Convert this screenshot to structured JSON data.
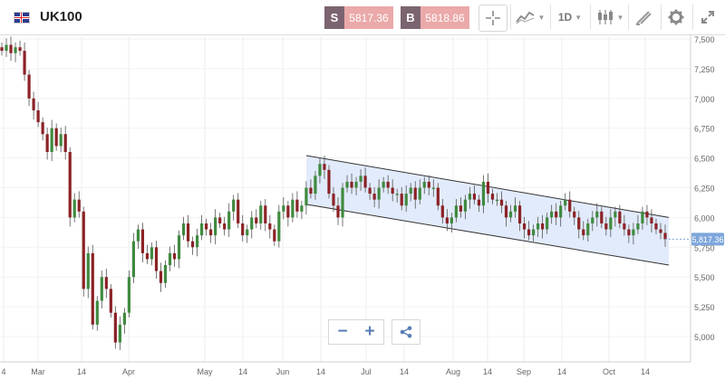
{
  "header": {
    "instrument": "UK100",
    "sell_label": "S",
    "sell_price": "5817.36",
    "buy_label": "B",
    "buy_price": "5818.86",
    "timeframe": "1D"
  },
  "controls": {
    "zoom_out": "−",
    "zoom_in": "+"
  },
  "colors": {
    "up_candle": "#3f8a3f",
    "down_candle": "#8b2226",
    "channel_fill": "#dde7fb",
    "price_marker": "#7ea6dc",
    "sell_box": "#eba9a9",
    "label_box": "#7b6470"
  },
  "chart_data": {
    "type": "candlestick",
    "y_ticks": [
      "7,500",
      "7,250",
      "7,000",
      "6,750",
      "6,500",
      "6,250",
      "6,000",
      "5,750",
      "5,500",
      "5,250",
      "5,000"
    ],
    "x_ticks": [
      "4",
      "Mar",
      "14",
      "Apr",
      "May",
      "14",
      "Jun",
      "14",
      "Jul",
      "14",
      "Aug",
      "14",
      "Sep",
      "14",
      "Oct",
      "14"
    ],
    "ylim": [
      4800,
      7560
    ],
    "current_price_label": "5,817.36",
    "current_price": 5817.36,
    "channel": {
      "upper": [
        [
          "Jun 8",
          6520
        ],
        [
          "Oct 26",
          6000
        ]
      ],
      "lower": [
        [
          "Jun 8",
          6110
        ],
        [
          "Oct 26",
          5600
        ]
      ]
    },
    "candles_close_path": [
      7400,
      7450,
      7380,
      7430,
      7400,
      7200,
      7000,
      6900,
      6800,
      6700,
      6550,
      6750,
      6600,
      6700,
      6550,
      6000,
      6150,
      6050,
      5400,
      5700,
      5100,
      5300,
      5500,
      5400,
      5200,
      4950,
      5100,
      5200,
      5500,
      5800,
      5900,
      5700,
      5650,
      5750,
      5550,
      5450,
      5600,
      5700,
      5650,
      5850,
      5950,
      5800,
      5750,
      5850,
      5950,
      5900,
      5850,
      6000,
      5950,
      5900,
      6050,
      6150,
      5950,
      5850,
      5900,
      6000,
      5950,
      6100,
      5950,
      5900,
      5800,
      6050,
      6100,
      6000,
      6150,
      6050,
      6100,
      6250,
      6200,
      6350,
      6450,
      6400,
      6200,
      6100,
      6000,
      6250,
      6300,
      6250,
      6300,
      6350,
      6250,
      6200,
      6150,
      6250,
      6300,
      6250,
      6200,
      6200,
      6100,
      6200,
      6250,
      6150,
      6250,
      6300,
      6250,
      6250,
      6100,
      6000,
      5950,
      6000,
      6100,
      6050,
      6150,
      6200,
      6150,
      6100,
      6300,
      6200,
      6150,
      6150,
      6100,
      6000,
      6050,
      6100,
      5950,
      5900,
      5850,
      5900,
      5950,
      5900,
      6000,
      6050,
      6000,
      6100,
      6150,
      6050,
      6000,
      5900,
      5850,
      5950,
      6000,
      6050,
      5950,
      5900,
      6000,
      6050,
      5950,
      5900,
      5850,
      5900,
      5950,
      6050,
      6000,
      5950,
      5900,
      5870,
      5817
    ]
  }
}
